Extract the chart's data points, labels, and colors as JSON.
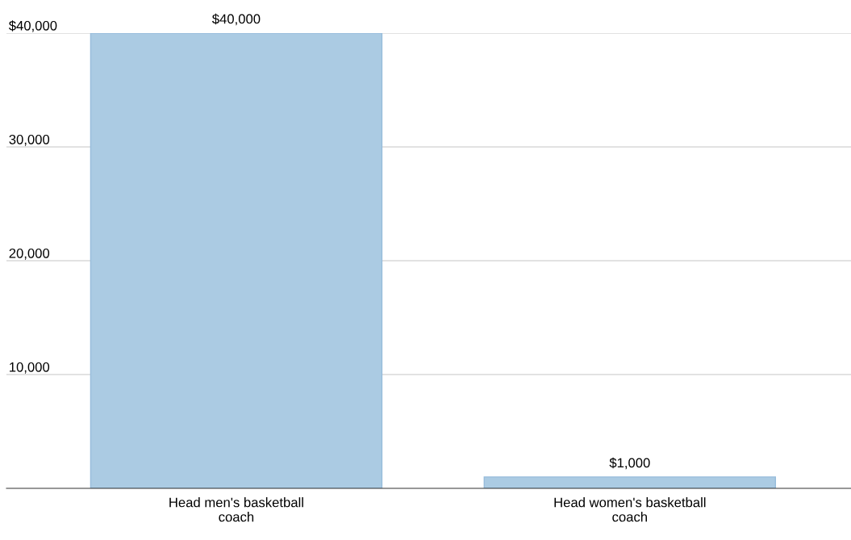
{
  "chart_data": {
    "type": "bar",
    "categories": [
      "Head men's basketball coach",
      "Head women's basketball coach"
    ],
    "values": [
      40000,
      1000
    ],
    "value_labels": [
      "$40,000",
      "$1,000"
    ],
    "color": "#abcbe3",
    "ylim": [
      0,
      40000
    ],
    "yticks": [
      {
        "value": 10000,
        "label": "10,000"
      },
      {
        "value": 20000,
        "label": "20,000"
      },
      {
        "value": 30000,
        "label": "30,000"
      },
      {
        "value": 40000,
        "label": "$40,000"
      }
    ],
    "grid": "y",
    "legend": false
  }
}
